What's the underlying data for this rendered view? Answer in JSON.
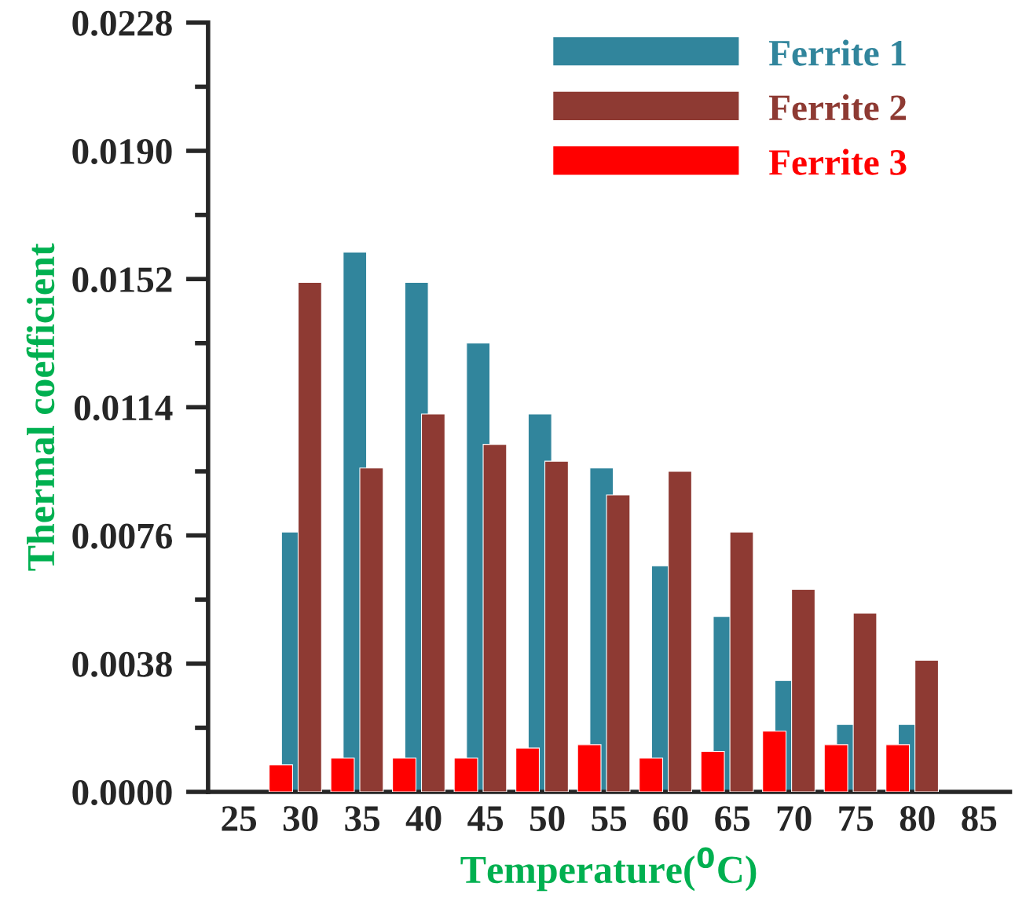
{
  "chart_data": {
    "type": "bar",
    "xlabel": "Temperature($^{0}$C)",
    "ylabel": "Thermal coefficient",
    "categories": [
      "25",
      "30",
      "35",
      "40",
      "45",
      "50",
      "55",
      "60",
      "65",
      "70",
      "75",
      "80",
      "85"
    ],
    "series": [
      {
        "name": "Ferrite 1",
        "color": "#31859c",
        "values": [
          null,
          0.0077,
          0.016,
          0.0151,
          0.0133,
          0.0112,
          0.0096,
          0.0067,
          0.0052,
          0.0033,
          0.002,
          0.002,
          null
        ]
      },
      {
        "name": "Ferrite 2",
        "color": "#8e3a33",
        "values": [
          null,
          0.0151,
          0.0096,
          0.0112,
          0.0103,
          0.0098,
          0.0088,
          0.0095,
          0.0077,
          0.006,
          0.0053,
          0.0039,
          null
        ]
      },
      {
        "name": "Ferrite 3",
        "color": "#ff0000",
        "values": [
          null,
          0.0008,
          0.001,
          0.001,
          0.001,
          0.0013,
          0.0014,
          0.001,
          0.0012,
          0.0018,
          0.0014,
          0.0014,
          null
        ]
      }
    ],
    "ylim": [
      0,
      0.0228
    ],
    "yticks": [
      {
        "value": 0,
        "label": "0.0000"
      },
      {
        "value": 0.0019,
        "label": null
      },
      {
        "value": 0.0038,
        "label": "0.0038"
      },
      {
        "value": 0.0057,
        "label": null
      },
      {
        "value": 0.0076,
        "label": "0.0076"
      },
      {
        "value": 0.0095,
        "label": null
      },
      {
        "value": 0.0114,
        "label": "0.0114"
      },
      {
        "value": 0.0133,
        "label": null
      },
      {
        "value": 0.0152,
        "label": "0.0152"
      },
      {
        "value": 0.0171,
        "label": null
      },
      {
        "value": 0.019,
        "label": "0.0190"
      },
      {
        "value": 0.0209,
        "label": null
      },
      {
        "value": 0.0228,
        "label": "0.0228"
      }
    ],
    "grid": false,
    "legend": "top right"
  }
}
